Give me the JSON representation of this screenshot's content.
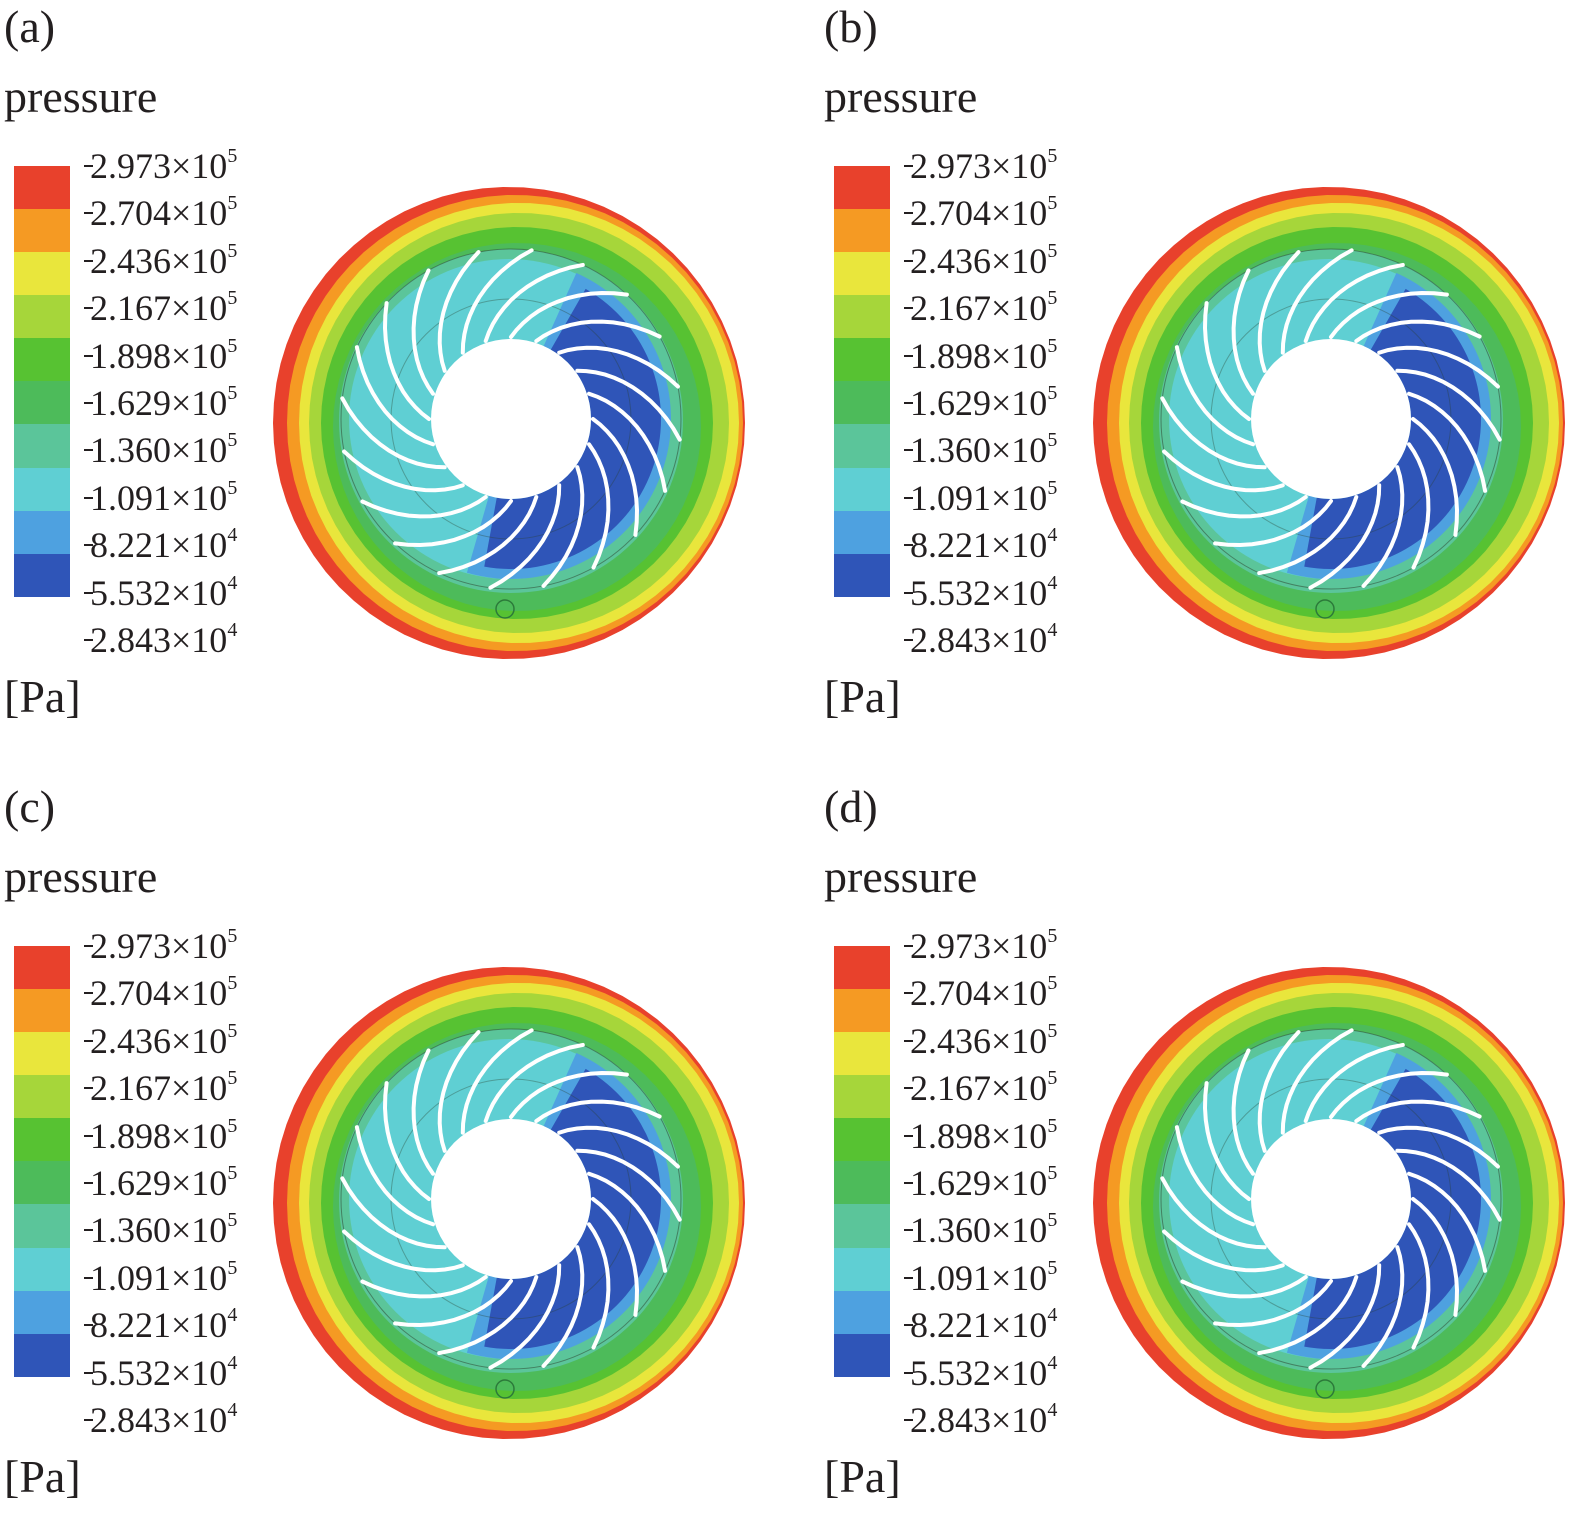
{
  "figure": {
    "quantity": "pressure",
    "unit": "[Pa]",
    "legend": {
      "ticks": [
        {
          "mantissa": "2.973",
          "times": "×10",
          "exp": "5"
        },
        {
          "mantissa": "2.704",
          "times": "×10",
          "exp": "5"
        },
        {
          "mantissa": "2.436",
          "times": "×10",
          "exp": "5"
        },
        {
          "mantissa": "2.167",
          "times": "×10",
          "exp": "5"
        },
        {
          "mantissa": "1.898",
          "times": "×10",
          "exp": "5"
        },
        {
          "mantissa": "1.629",
          "times": "×10",
          "exp": "5"
        },
        {
          "mantissa": "1.360",
          "times": "×10",
          "exp": "5"
        },
        {
          "mantissa": "1.091",
          "times": "×10",
          "exp": "5"
        },
        {
          "mantissa": "8.221",
          "times": "×10",
          "exp": "4"
        },
        {
          "mantissa": "5.532",
          "times": "×10",
          "exp": "4"
        },
        {
          "mantissa": "2.843",
          "times": "×10",
          "exp": "4"
        }
      ],
      "colors": [
        "#e8412c",
        "#f59a23",
        "#e9e63c",
        "#a6d63a",
        "#57c232",
        "#4dbb5a",
        "#5bc59a",
        "#5fcfd3",
        "#4ea1e0",
        "#2f55b8"
      ]
    },
    "blade_count": 20,
    "panels": [
      {
        "label": "(a)"
      },
      {
        "label": "(b)"
      },
      {
        "label": "(c)"
      },
      {
        "label": "(d)"
      }
    ]
  }
}
